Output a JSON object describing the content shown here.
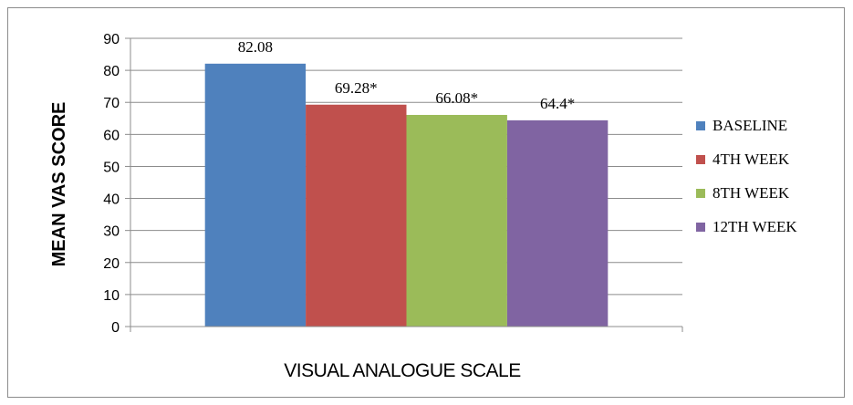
{
  "chart_data": {
    "type": "bar",
    "categories": [
      ""
    ],
    "series": [
      {
        "name": "BASELINE",
        "values": [
          82.08
        ],
        "label": "82.08",
        "color": "#4f81bd"
      },
      {
        "name": "4TH WEEK",
        "values": [
          69.28
        ],
        "label": "69.28*",
        "color": "#c0504d"
      },
      {
        "name": "8TH WEEK",
        "values": [
          66.08
        ],
        "label": "66.08*",
        "color": "#9bbb59"
      },
      {
        "name": "12TH WEEK",
        "values": [
          64.4
        ],
        "label": "64.4*",
        "color": "#8064a2"
      }
    ],
    "xlabel": "VISUAL ANALOGUE SCALE",
    "ylabel": "MEAN VAS SCORE",
    "ylim": [
      0,
      90
    ],
    "yticks": [
      0,
      10,
      20,
      30,
      40,
      50,
      60,
      70,
      80,
      90
    ],
    "grid": true,
    "legend": "right"
  }
}
